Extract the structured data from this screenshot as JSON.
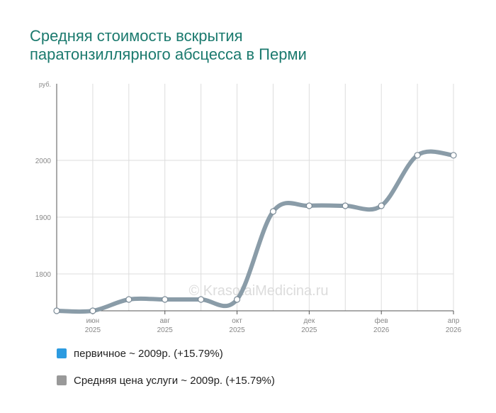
{
  "title_lines": [
    "Средняя стоимость вскрытия",
    "паратонзиллярного абсцесса в Перми"
  ],
  "watermark": "© KrasotaiMedicina.ru",
  "legend": [
    {
      "label": "первичное ~ 2009р. (+15.79%)",
      "color": "#2c9be0"
    },
    {
      "label": "Средняя цена услуги ~ 2009р. (+15.79%)",
      "color": "#999999"
    }
  ],
  "colors": {
    "line": "#8a9ca8",
    "grid": "#dddddd",
    "axis": "#555555",
    "tick_text": "#888888"
  },
  "chart_data": {
    "type": "line",
    "title": "Средняя стоимость вскрытия паратонзиллярного абсцесса в Перми",
    "ylabel": "руб.",
    "ylim": [
      1735,
      2135
    ],
    "yticks": [
      1800,
      1900,
      2000
    ],
    "x_ticks": [
      {
        "month": "июн",
        "year": "2025"
      },
      {
        "month": "авг",
        "year": "2025"
      },
      {
        "month": "окт",
        "year": "2025"
      },
      {
        "month": "дек",
        "year": "2025"
      },
      {
        "month": "фев",
        "year": "2026"
      },
      {
        "month": "апр",
        "year": "2026"
      }
    ],
    "series": [
      {
        "x": [
          "2025-05",
          "2025-06",
          "2025-07",
          "2025-08",
          "2025-09",
          "2025-10",
          "2025-11",
          "2025-12",
          "2026-01",
          "2026-02",
          "2026-03",
          "2026-04"
        ],
        "values": [
          1735,
          1735,
          1755,
          1755,
          1755,
          1755,
          1910,
          1920,
          1920,
          1920,
          2009,
          2009
        ]
      }
    ],
    "grid": true
  }
}
